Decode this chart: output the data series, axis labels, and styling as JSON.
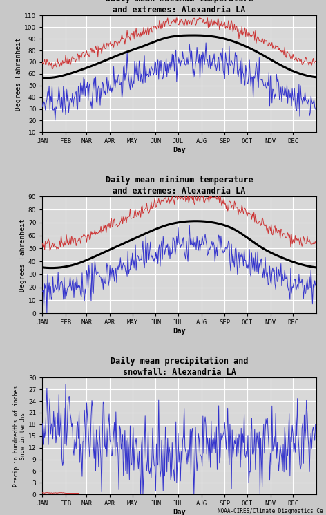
{
  "title1": "Daily mean maximum temperature\nand extremes: Alexandria LA",
  "title2": "Daily mean minimum temperature\nand extremes: Alexandria LA",
  "title3": "Daily mean precipitation and\nsnowfall: Alexandria LA",
  "ylabel1": "Degrees Fahrenheit",
  "ylabel2": "Degrees Fahrenheit",
  "ylabel3": "Precip in hundredths of inches\nSnow in tenths",
  "xlabel": "Day",
  "months": [
    "JAN",
    "FEB",
    "MAR",
    "APR",
    "MAY",
    "JUN",
    "JUL",
    "AUG",
    "SEP",
    "OCT",
    "NOV",
    "DEC"
  ],
  "fig_bg_color": "#c8c8c8",
  "plot_bg_color": "#d8d8d8",
  "line_color_red": "#cc3333",
  "line_color_blue": "#3333cc",
  "line_color_black": "#000000",
  "grid_color": "#ffffff",
  "ylim1": [
    10,
    110
  ],
  "ylim2": [
    0,
    90
  ],
  "ylim3": [
    0,
    30
  ],
  "yticks1": [
    10,
    20,
    30,
    40,
    50,
    60,
    70,
    80,
    90,
    100,
    110
  ],
  "yticks2": [
    0,
    10,
    20,
    30,
    40,
    50,
    60,
    70,
    80,
    90
  ],
  "yticks3": [
    0,
    3,
    6,
    9,
    12,
    15,
    18,
    21,
    24,
    27,
    30
  ],
  "footer": "NOAA-CIRES/Climate Diagnostics Ce",
  "mean_max_temps": [
    57,
    62,
    69,
    77,
    84,
    91,
    93,
    92,
    87,
    78,
    67,
    59
  ],
  "mean_min_temps": [
    35,
    38,
    45,
    53,
    61,
    68,
    71,
    70,
    64,
    52,
    43,
    37
  ],
  "precip_mean": [
    18,
    14,
    15,
    13,
    10,
    8,
    10,
    13,
    12,
    11,
    13,
    16
  ]
}
